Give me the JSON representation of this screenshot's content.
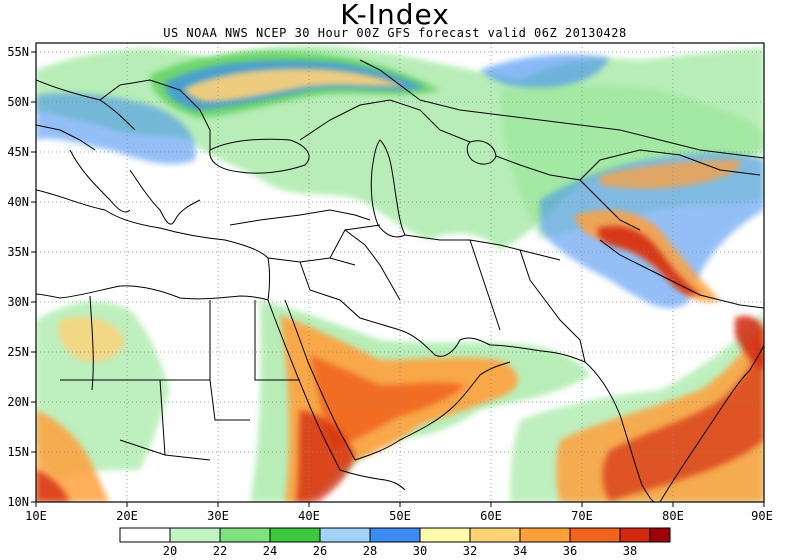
{
  "title": "K-Index",
  "subtitle": "US NOAA NWS NCEP 30 Hour 00Z GFS forecast valid 06Z 20130428",
  "lon_labels": [
    "10E",
    "20E",
    "30E",
    "40E",
    "50E",
    "60E",
    "70E",
    "80E",
    "90E"
  ],
  "lat_labels": [
    "55N",
    "50N",
    "45N",
    "40N",
    "35N",
    "30N",
    "25N",
    "20N",
    "15N",
    "10N"
  ],
  "colorbar": {
    "labels": [
      "20",
      "22",
      "24",
      "26",
      "28",
      "30",
      "32",
      "34",
      "36",
      "38"
    ],
    "colors": [
      "#ffffff",
      "#c3f5c3",
      "#7fe07f",
      "#3cc83c",
      "#a0d2fa",
      "#3c8cf0",
      "#fffaaa",
      "#ffd278",
      "#ffa03c",
      "#f0641e",
      "#d2280f",
      "#a0000a"
    ]
  },
  "palette": {
    "green_light": "#c3f5c3",
    "green": "#7fe07f",
    "green_dark": "#3cc83c",
    "blue_light": "#a0d2fa",
    "blue": "#3c8cf0",
    "yellow": "#fffaaa",
    "orange_light": "#ffd278",
    "orange": "#ffa03c",
    "red_orange": "#f0641e",
    "red": "#d2280f",
    "dark_red": "#a0000a"
  }
}
